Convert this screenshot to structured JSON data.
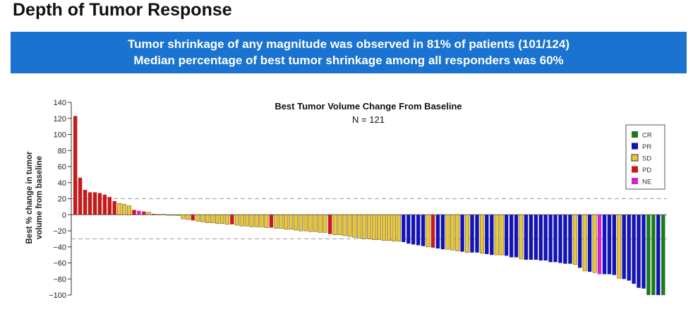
{
  "page_title": "Depth of Tumor Response",
  "banner": {
    "line1": "Tumor shrinkage of any magnitude was observed in 81% of patients (101/124)",
    "line2": "Median percentage of best tumor shrinkage among all responders was 60%"
  },
  "chart_data": {
    "type": "bar",
    "title": "Best Tumor Volume Change From Baseline",
    "subtitle": "N = 121",
    "ylabel_line1": "Best % change in tumor",
    "ylabel_line2": "volume from baseline",
    "xlabel": "",
    "ylim": [
      -100,
      140
    ],
    "yticks": [
      140,
      120,
      100,
      80,
      60,
      40,
      20,
      0,
      -20,
      -40,
      -60,
      -80,
      -100
    ],
    "reference_lines": [
      20,
      -30
    ],
    "legend_position": "top-right",
    "legend": [
      {
        "key": "CR",
        "label": "CR",
        "color": "#1c7a1c"
      },
      {
        "key": "PR",
        "label": "PR",
        "color": "#1414b4"
      },
      {
        "key": "SD",
        "label": "SD",
        "color": "#e8c63c"
      },
      {
        "key": "PD",
        "label": "PD",
        "color": "#c41a1a"
      },
      {
        "key": "NE",
        "label": "NE",
        "color": "#d024d0"
      }
    ],
    "values": [
      123,
      46,
      31,
      28,
      28,
      27,
      25,
      22,
      17,
      14,
      13,
      11,
      6,
      5,
      4,
      3,
      1,
      0.5,
      0.5,
      0,
      -0.5,
      -1,
      -5,
      -6,
      -7,
      -8,
      -9,
      -10,
      -10,
      -11,
      -11,
      -12,
      -12,
      -13,
      -14,
      -14,
      -15,
      -15,
      -15,
      -16,
      -16,
      -17,
      -17,
      -18,
      -18,
      -19,
      -20,
      -20,
      -21,
      -21,
      -22,
      -22,
      -24,
      -25,
      -25,
      -26,
      -27,
      -28,
      -29,
      -30,
      -30,
      -31,
      -31,
      -32,
      -32,
      -33,
      -33,
      -34,
      -36,
      -37,
      -38,
      -39,
      -40,
      -41,
      -42,
      -43,
      -43,
      -44,
      -45,
      -46,
      -47,
      -47,
      -47,
      -48,
      -49,
      -50,
      -50,
      -50,
      -51,
      -53,
      -53,
      -55,
      -56,
      -56,
      -56,
      -57,
      -57,
      -59,
      -59,
      -60,
      -61,
      -61,
      -62,
      -66,
      -70,
      -71,
      -72,
      -74,
      -74,
      -74,
      -75,
      -79,
      -80,
      -82,
      -86,
      -91,
      -92,
      -100,
      -100,
      -100,
      -100
    ],
    "categories": [
      "PD",
      "PD",
      "PD",
      "PD",
      "PD",
      "PD",
      "PD",
      "PD",
      "PD",
      "SD",
      "SD",
      "SD",
      "PD",
      "NE",
      "PD",
      "SD",
      "PD",
      "SD",
      "SD",
      "SD",
      "SD",
      "SD",
      "SD",
      "SD",
      "PD",
      "SD",
      "SD",
      "SD",
      "SD",
      "SD",
      "SD",
      "SD",
      "PD",
      "SD",
      "SD",
      "SD",
      "SD",
      "SD",
      "SD",
      "SD",
      "PD",
      "SD",
      "SD",
      "SD",
      "SD",
      "SD",
      "SD",
      "SD",
      "SD",
      "SD",
      "SD",
      "SD",
      "PD",
      "SD",
      "SD",
      "SD",
      "SD",
      "SD",
      "SD",
      "SD",
      "SD",
      "SD",
      "SD",
      "SD",
      "SD",
      "SD",
      "SD",
      "PR",
      "PR",
      "PR",
      "PR",
      "PR",
      "SD",
      "PD",
      "PR",
      "PR",
      "SD",
      "SD",
      "SD",
      "PR",
      "SD",
      "PR",
      "PR",
      "SD",
      "PR",
      "PR",
      "SD",
      "SD",
      "PR",
      "PR",
      "PR",
      "SD",
      "PR",
      "PR",
      "PR",
      "PR",
      "PR",
      "PR",
      "PR",
      "PR",
      "PR",
      "PR",
      "SD",
      "PR",
      "SD",
      "PR",
      "SD",
      "NE",
      "PR",
      "PR",
      "PR",
      "SD",
      "PR",
      "PR",
      "PR",
      "PR",
      "PR",
      "CR",
      "CR",
      "PR",
      "CR"
    ]
  }
}
